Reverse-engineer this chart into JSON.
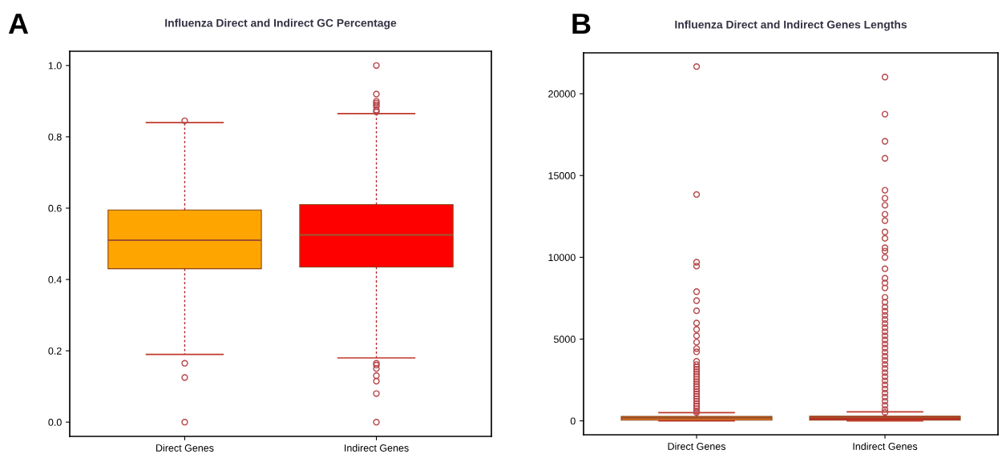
{
  "chart_data": [
    {
      "type": "box",
      "title": "Influenza Direct and Indirect GC Percentage",
      "annotations": [
        "A"
      ],
      "categories": [
        "Direct Genes",
        "Indirect Genes"
      ],
      "colors": [
        "#ffa500",
        "#ff0000"
      ],
      "boxes": [
        {
          "low": 0.19,
          "q1": 0.43,
          "median": 0.51,
          "q3": 0.595,
          "high": 0.84,
          "outliers": [
            0.845,
            0.165,
            0.125,
            0.0
          ]
        },
        {
          "low": 0.18,
          "q1": 0.435,
          "median": 0.525,
          "q3": 0.61,
          "high": 0.865,
          "outliers": [
            1.0,
            0.92,
            0.9,
            0.895,
            0.89,
            0.885,
            0.875,
            0.87,
            0.165,
            0.16,
            0.15,
            0.13,
            0.115,
            0.08,
            0.0
          ]
        }
      ],
      "ylim": [
        -0.04,
        1.04
      ],
      "yticks": [
        {
          "value": 0,
          "label": "0.0"
        },
        {
          "value": 0.2,
          "label": "0.2"
        },
        {
          "value": 0.4,
          "label": "0.4"
        },
        {
          "value": 0.6,
          "label": "0.6"
        },
        {
          "value": 0.8,
          "label": "0.8"
        },
        {
          "value": 1,
          "label": "1.0"
        }
      ],
      "grid": false
    },
    {
      "type": "box",
      "title": "Influenza Direct and Indirect Genes Lengths",
      "annotations": [
        "B"
      ],
      "categories": [
        "Direct Genes",
        "Indirect Genes"
      ],
      "colors": [
        "#e8761f",
        "#c8201e"
      ],
      "boxes": [
        {
          "low": 0,
          "q1": 40,
          "median": 180,
          "q3": 270,
          "high": 500,
          "outliers": [
            21660,
            13840,
            9700,
            9460,
            7900,
            7350,
            6730,
            5980,
            5590,
            5200,
            4810,
            4420,
            4220,
            3640,
            3440,
            3300,
            3150,
            3000,
            2850,
            2700,
            2550,
            2400,
            2250,
            2100,
            1950,
            1800,
            1650,
            1500,
            1350,
            1200,
            1050,
            900,
            750,
            600,
            510
          ]
        },
        {
          "low": 0,
          "q1": 40,
          "median": 200,
          "q3": 290,
          "high": 550,
          "outliers": [
            21020,
            18750,
            17090,
            16050,
            14100,
            13610,
            13180,
            12630,
            12240,
            11550,
            11160,
            10580,
            10380,
            9990,
            9300,
            8720,
            8430,
            8130,
            7550,
            7250,
            6960,
            6700,
            6450,
            6200,
            5950,
            5700,
            5450,
            5200,
            4950,
            4700,
            4450,
            4200,
            3950,
            3700,
            3450,
            3200,
            2950,
            2700,
            2450,
            2200,
            1950,
            1700,
            1450,
            1200,
            950,
            700,
            510
          ]
        }
      ],
      "ylim": [
        -850,
        22500
      ],
      "yticks": [
        0,
        5000,
        10000,
        15000,
        20000
      ],
      "grid": false
    }
  ]
}
